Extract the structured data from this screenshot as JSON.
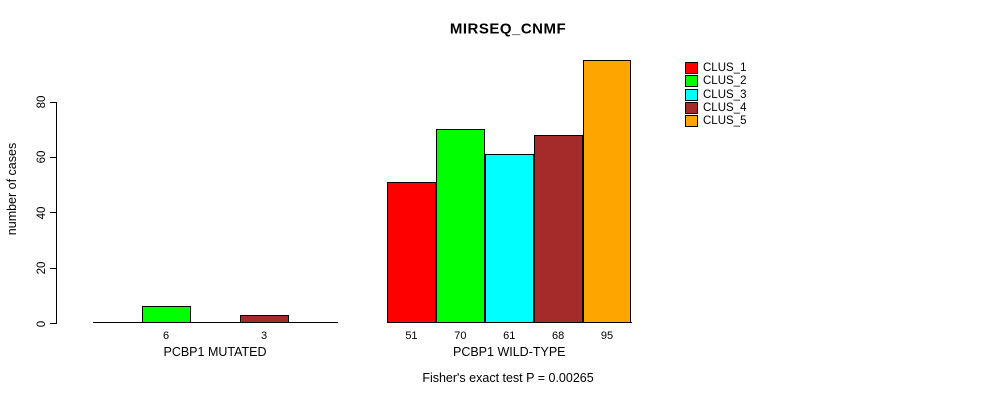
{
  "title": "MIRSEQ_CNMF",
  "chart_data": {
    "type": "bar",
    "title": "MIRSEQ_CNMF",
    "ylabel": "number of cases",
    "xlabel": "",
    "ylim": [
      0,
      95
    ],
    "yticks": [
      0,
      20,
      40,
      60,
      80
    ],
    "grid": false,
    "legend_position": "right",
    "legend": [
      {
        "name": "CLUS_1",
        "color": "#FF0000"
      },
      {
        "name": "CLUS_2",
        "color": "#00FF00"
      },
      {
        "name": "CLUS_3",
        "color": "#00FFFF"
      },
      {
        "name": "CLUS_4",
        "color": "#A52A2A"
      },
      {
        "name": "CLUS_5",
        "color": "#FFA500"
      }
    ],
    "groups": [
      {
        "label": "PCBP1 MUTATED",
        "values": [
          0,
          6,
          0,
          3,
          0
        ],
        "bar_labels": [
          "",
          "6",
          "",
          "3",
          ""
        ]
      },
      {
        "label": "PCBP1 WILD-TYPE",
        "values": [
          51,
          70,
          61,
          68,
          95
        ],
        "bar_labels": [
          "51",
          "70",
          "61",
          "68",
          "95"
        ]
      }
    ],
    "annotation": "Fisher's exact test P = 0.00265"
  }
}
